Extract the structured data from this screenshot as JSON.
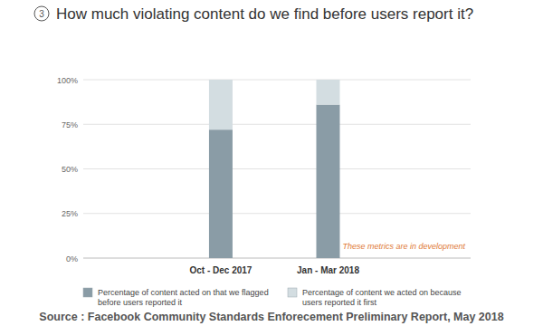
{
  "chart_data": {
    "type": "bar",
    "stacked": true,
    "title_number": "3",
    "title": "How much violating content do we find before users report it?",
    "categories": [
      "Oct - Dec 2017",
      "Jan - Mar 2018"
    ],
    "series": [
      {
        "name": "Percentage of content acted on that we flagged before users reported it",
        "color": "#8a9ca6",
        "values": [
          72,
          86
        ]
      },
      {
        "name": "Percentage of content we acted on because users reported it first",
        "color": "#d3dde1",
        "values": [
          28,
          14
        ]
      }
    ],
    "ylim": [
      0,
      100
    ],
    "yticks": [
      {
        "value": 0,
        "label": "0%"
      },
      {
        "value": 25,
        "label": "25%"
      },
      {
        "value": 50,
        "label": "50%"
      },
      {
        "value": 75,
        "label": "75%"
      },
      {
        "value": 100,
        "label": "100%"
      }
    ],
    "grid": true,
    "legend": "bottom",
    "annotations": [
      "These metrics are in development"
    ],
    "source": "Source : Facebook Community Standards Enforecement Preliminary Report, May 2018"
  }
}
